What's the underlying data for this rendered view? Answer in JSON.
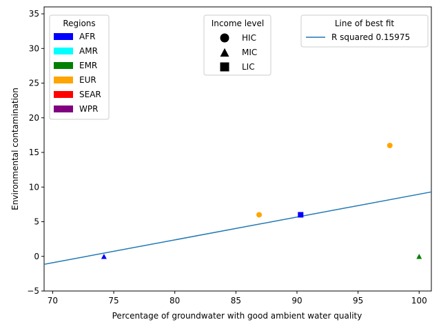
{
  "chart_data": {
    "type": "scatter",
    "xlabel": "Percentage of groundwater with good ambient water quality",
    "ylabel": "Environmental contamination",
    "xlim": [
      69.3,
      101.0
    ],
    "ylim": [
      -5,
      36
    ],
    "x_ticks": [
      70,
      75,
      80,
      85,
      90,
      95,
      100
    ],
    "y_ticks": [
      -5,
      0,
      5,
      10,
      15,
      20,
      25,
      30,
      35
    ],
    "grid": false,
    "points": [
      {
        "x": 74.2,
        "y": 0,
        "region": "AFR",
        "income": "MIC"
      },
      {
        "x": 86.9,
        "y": 6,
        "region": "EUR",
        "income": "HIC"
      },
      {
        "x": 90.3,
        "y": 6,
        "region": "AFR",
        "income": "LIC"
      },
      {
        "x": 97.6,
        "y": 16,
        "region": "EUR",
        "income": "HIC"
      },
      {
        "x": 100.0,
        "y": 0,
        "region": "EMR",
        "income": "MIC"
      }
    ],
    "fit_line": {
      "x": [
        69.3,
        101.0
      ],
      "y": [
        -1.15,
        9.3
      ],
      "color": "#1f77b4"
    },
    "legends": {
      "regions": {
        "title": "Regions",
        "placement": "top-left",
        "items": [
          {
            "label": "AFR",
            "color": "#0000ff"
          },
          {
            "label": "AMR",
            "color": "#00ffff"
          },
          {
            "label": "EMR",
            "color": "#008000"
          },
          {
            "label": "EUR",
            "color": "#ffa500"
          },
          {
            "label": "SEAR",
            "color": "#ff0000"
          },
          {
            "label": "WPR",
            "color": "#800080"
          }
        ]
      },
      "income": {
        "title": "Income level",
        "placement": "top-center",
        "items": [
          {
            "label": "HIC",
            "marker": "circle"
          },
          {
            "label": "MIC",
            "marker": "triangle"
          },
          {
            "label": "LIC",
            "marker": "square"
          }
        ]
      },
      "fit": {
        "title": "Line of best fit",
        "placement": "top-right",
        "label": "R squared 0.15975"
      }
    }
  }
}
